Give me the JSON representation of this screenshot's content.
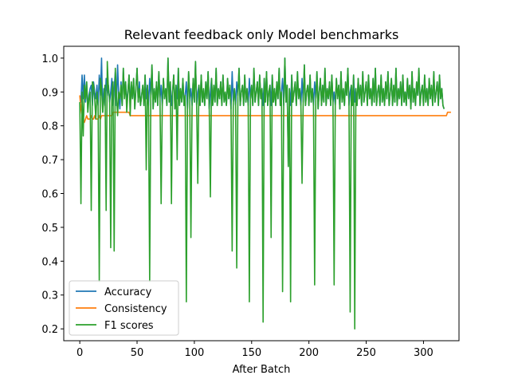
{
  "chart_data": {
    "type": "line",
    "title": "Relevant feedback only Model benchmarks",
    "xlabel": "After Batch",
    "ylabel": "",
    "xlim": [
      -14,
      331
    ],
    "ylim": [
      0.165,
      1.035
    ],
    "x_ticks": [
      0,
      50,
      100,
      150,
      200,
      250,
      300
    ],
    "y_ticks": [
      0.2,
      0.3,
      0.4,
      0.5,
      0.6,
      0.7,
      0.8,
      0.9,
      1.0
    ],
    "x_tick_labels": [
      "0",
      "50",
      "100",
      "150",
      "200",
      "250",
      "300"
    ],
    "y_tick_labels": [
      "0.2",
      "0.3",
      "0.4",
      "0.5",
      "0.6",
      "0.7",
      "0.8",
      "0.9",
      "1.0"
    ],
    "grid": false,
    "legend": "lower-left",
    "x_start": 0,
    "series": [
      {
        "name": "Accuracy",
        "color": "#1f77b4",
        "values": [
          0.89,
          0.87,
          0.95,
          0.88,
          0.95,
          0.87,
          0.93,
          0.85,
          0.89,
          0.91,
          0.92,
          0.86,
          0.93,
          0.9,
          0.88,
          0.92,
          0.86,
          0.95,
          0.89,
          1.0,
          0.84,
          0.91,
          0.86,
          0.94,
          0.89,
          0.92,
          0.87,
          0.9,
          0.94,
          0.86,
          0.91,
          0.96,
          0.86,
          0.98,
          0.89,
          0.85,
          0.93,
          0.86,
          0.97,
          0.89,
          0.93,
          0.87,
          0.9,
          0.95,
          0.86,
          0.92,
          0.88,
          0.94,
          0.85,
          0.91,
          0.97,
          0.87,
          0.93,
          0.86,
          0.89,
          0.92,
          0.86,
          0.95,
          0.88,
          0.92,
          0.86,
          0.94,
          0.89,
          0.98,
          0.85,
          0.91,
          0.87,
          0.93,
          0.86,
          0.96,
          0.88,
          0.92,
          0.86,
          0.94,
          0.88,
          0.91,
          0.86,
          1.0,
          0.87,
          0.93,
          0.86,
          0.9,
          0.95,
          0.85,
          0.92,
          0.88,
          0.97,
          0.86,
          0.91,
          0.87,
          0.94,
          0.86,
          0.89,
          0.93,
          0.85,
          0.96,
          0.88,
          0.91,
          0.86,
          0.94,
          0.87,
          0.99,
          0.86,
          0.9,
          0.92,
          0.86,
          0.95,
          0.87,
          0.91,
          0.86,
          0.93,
          0.88,
          0.96,
          0.85,
          0.9,
          0.94,
          0.86,
          0.92,
          0.87,
          0.97,
          0.86,
          0.91,
          0.88,
          0.93,
          0.86,
          0.95,
          0.87,
          0.9,
          0.86,
          0.94,
          0.88,
          0.92,
          0.85,
          0.96,
          0.87,
          0.91,
          0.86,
          0.93,
          0.89,
          0.97,
          0.86,
          0.9,
          0.92,
          0.86,
          0.95,
          0.87,
          0.91,
          0.86,
          0.94,
          0.88,
          0.92,
          0.86,
          0.97,
          0.87,
          0.9,
          0.93,
          0.86,
          0.95,
          0.88,
          0.91,
          0.86,
          0.94,
          0.87,
          0.96,
          0.86,
          0.9,
          0.92,
          0.86,
          0.95,
          0.87,
          0.91,
          0.86,
          0.93,
          0.88,
          0.97,
          0.86,
          0.9,
          0.94,
          0.86,
          1.0,
          0.87,
          0.92,
          0.68,
          0.91,
          0.86,
          0.95,
          0.87,
          0.9,
          0.93,
          0.86,
          0.96,
          0.88,
          0.91,
          0.86,
          0.94,
          0.87,
          0.98,
          0.86,
          0.9,
          0.92,
          0.86,
          0.95,
          0.87,
          0.91,
          0.86,
          0.93,
          0.88,
          0.96,
          0.85,
          0.9,
          0.94,
          0.86,
          0.92,
          0.87,
          0.97,
          0.86,
          0.91,
          0.88,
          0.93,
          0.86,
          0.95,
          0.87,
          0.9,
          0.86,
          0.94,
          0.88,
          0.92,
          0.85,
          0.96,
          0.87,
          0.91,
          0.86,
          0.93,
          0.89,
          0.97,
          0.86,
          0.9,
          0.92,
          0.86,
          0.95,
          0.87,
          0.91,
          0.86,
          0.94,
          0.88,
          0.92,
          0.86,
          0.96,
          0.87,
          0.9,
          0.93,
          0.86,
          0.95,
          0.88,
          0.91,
          0.86,
          0.94,
          0.87,
          0.97,
          0.86,
          0.9,
          0.92,
          0.86,
          0.95,
          0.87,
          0.91,
          0.86,
          0.93,
          0.88,
          0.96,
          0.86,
          0.9,
          0.94,
          0.86,
          0.92,
          0.87,
          0.97,
          0.86,
          0.91,
          0.88,
          0.93,
          0.86,
          0.95,
          0.87,
          0.9,
          0.86,
          0.94,
          0.88,
          0.92,
          0.85,
          0.96,
          0.87,
          0.91,
          0.86,
          0.93,
          0.89,
          0.97,
          0.86,
          0.9,
          0.92,
          0.86,
          0.95,
          0.87,
          0.91,
          0.86,
          0.94,
          0.88,
          0.92,
          0.86,
          0.96,
          0.87,
          0.9,
          0.93,
          0.86,
          0.95,
          0.88,
          0.91,
          0.86,
          0.85
        ]
      },
      {
        "name": "Consistency",
        "color": "#ff7f0e",
        "values": [
          0.89,
          0.85,
          0.83,
          0.82,
          0.81,
          0.82,
          0.83,
          0.82,
          0.82,
          0.82,
          0.83,
          0.82,
          0.82,
          0.83,
          0.82,
          0.82,
          0.82,
          0.83,
          0.82,
          0.83,
          0.83,
          0.83,
          0.83,
          0.83,
          0.83,
          0.83,
          0.83,
          0.83,
          0.83,
          0.84,
          0.84,
          0.84,
          0.84,
          0.84,
          0.84,
          0.84,
          0.84,
          0.84,
          0.84,
          0.84,
          0.84,
          0.84,
          0.84,
          0.84,
          0.83,
          0.83,
          0.83,
          0.83,
          0.83,
          0.83,
          0.83,
          0.83,
          0.83,
          0.83,
          0.83,
          0.83,
          0.83,
          0.83,
          0.83,
          0.83,
          0.83,
          0.83,
          0.83,
          0.83,
          0.83,
          0.83,
          0.83,
          0.83,
          0.83,
          0.83,
          0.83,
          0.83,
          0.83,
          0.83,
          0.83,
          0.83,
          0.83,
          0.83,
          0.83,
          0.83,
          0.83,
          0.83,
          0.83,
          0.83,
          0.83,
          0.83,
          0.83,
          0.83,
          0.83,
          0.83,
          0.83,
          0.83,
          0.83,
          0.83,
          0.83,
          0.83,
          0.83,
          0.83,
          0.83,
          0.83,
          0.83,
          0.83,
          0.83,
          0.83,
          0.83,
          0.83,
          0.83,
          0.83,
          0.83,
          0.83,
          0.83,
          0.83,
          0.83,
          0.83,
          0.83,
          0.83,
          0.83,
          0.83,
          0.83,
          0.83,
          0.83,
          0.83,
          0.83,
          0.83,
          0.83,
          0.83,
          0.83,
          0.83,
          0.83,
          0.83,
          0.83,
          0.83,
          0.83,
          0.83,
          0.83,
          0.83,
          0.83,
          0.83,
          0.83,
          0.83,
          0.83,
          0.83,
          0.83,
          0.83,
          0.83,
          0.83,
          0.83,
          0.83,
          0.83,
          0.83,
          0.83,
          0.83,
          0.83,
          0.83,
          0.83,
          0.83,
          0.83,
          0.83,
          0.83,
          0.83,
          0.83,
          0.83,
          0.83,
          0.83,
          0.83,
          0.83,
          0.83,
          0.83,
          0.83,
          0.83,
          0.83,
          0.83,
          0.83,
          0.83,
          0.83,
          0.83,
          0.83,
          0.83,
          0.83,
          0.83,
          0.83,
          0.83,
          0.83,
          0.83,
          0.83,
          0.83,
          0.83,
          0.83,
          0.83,
          0.83,
          0.83,
          0.83,
          0.83,
          0.83,
          0.83,
          0.83,
          0.83,
          0.83,
          0.83,
          0.83,
          0.83,
          0.83,
          0.83,
          0.83,
          0.83,
          0.83,
          0.83,
          0.83,
          0.83,
          0.83,
          0.83,
          0.83,
          0.83,
          0.83,
          0.83,
          0.83,
          0.83,
          0.83,
          0.83,
          0.83,
          0.83,
          0.83,
          0.83,
          0.83,
          0.83,
          0.83,
          0.83,
          0.83,
          0.83,
          0.83,
          0.83,
          0.83,
          0.83,
          0.83,
          0.83,
          0.83,
          0.83,
          0.83,
          0.83,
          0.83,
          0.83,
          0.83,
          0.83,
          0.83,
          0.83,
          0.83,
          0.83,
          0.83,
          0.83,
          0.83,
          0.83,
          0.83,
          0.83,
          0.83,
          0.83,
          0.83,
          0.83,
          0.83,
          0.83,
          0.83,
          0.83,
          0.83,
          0.83,
          0.83,
          0.83,
          0.83,
          0.83,
          0.83,
          0.83,
          0.83,
          0.83,
          0.83,
          0.83,
          0.83,
          0.83,
          0.83,
          0.83,
          0.83,
          0.83,
          0.83,
          0.83,
          0.83,
          0.83,
          0.83,
          0.83,
          0.83,
          0.83,
          0.83,
          0.83,
          0.83,
          0.83,
          0.83,
          0.83,
          0.83,
          0.83,
          0.83,
          0.83,
          0.83,
          0.83,
          0.83,
          0.83,
          0.83,
          0.83,
          0.83,
          0.83,
          0.83,
          0.83,
          0.83,
          0.83,
          0.83,
          0.83,
          0.83,
          0.83,
          0.83,
          0.83,
          0.83,
          0.83,
          0.83,
          0.83,
          0.83,
          0.83,
          0.84,
          0.84,
          0.84,
          0.84
        ]
      },
      {
        "name": "F1 scores",
        "color": "#2ca02c",
        "values": [
          0.87,
          0.57,
          0.9,
          0.77,
          0.92,
          0.88,
          0.93,
          0.84,
          0.88,
          0.9,
          0.55,
          0.93,
          0.92,
          0.88,
          0.82,
          0.9,
          0.86,
          0.34,
          0.94,
          0.91,
          0.84,
          0.88,
          0.92,
          0.55,
          0.99,
          0.91,
          0.88,
          0.44,
          0.9,
          0.93,
          0.43,
          0.97,
          0.89,
          0.83,
          0.9,
          0.88,
          0.92,
          0.86,
          0.97,
          0.88,
          0.93,
          0.84,
          0.9,
          0.95,
          0.83,
          0.93,
          0.88,
          0.94,
          0.85,
          0.91,
          0.97,
          0.87,
          0.91,
          0.86,
          0.89,
          0.92,
          0.86,
          0.95,
          0.67,
          0.92,
          0.86,
          0.34,
          0.89,
          0.98,
          0.85,
          0.91,
          0.87,
          0.93,
          0.86,
          0.96,
          0.88,
          0.57,
          0.86,
          0.94,
          0.88,
          0.91,
          0.86,
          1.0,
          0.87,
          0.93,
          0.57,
          0.9,
          0.95,
          0.85,
          0.92,
          0.7,
          0.97,
          0.86,
          0.91,
          0.87,
          0.94,
          0.86,
          0.89,
          0.28,
          0.85,
          0.96,
          0.88,
          0.47,
          0.86,
          0.94,
          0.87,
          0.99,
          0.86,
          0.63,
          0.92,
          0.86,
          0.95,
          0.87,
          0.91,
          0.86,
          0.93,
          0.88,
          0.96,
          0.85,
          0.59,
          0.94,
          0.86,
          0.92,
          0.87,
          0.97,
          0.86,
          0.91,
          0.88,
          0.93,
          0.86,
          0.95,
          0.87,
          0.9,
          0.86,
          0.94,
          0.88,
          0.92,
          0.85,
          0.43,
          0.87,
          0.91,
          0.86,
          0.38,
          0.89,
          0.97,
          0.86,
          0.9,
          0.92,
          0.86,
          0.95,
          0.87,
          0.91,
          0.86,
          0.28,
          0.88,
          0.92,
          0.86,
          0.97,
          0.87,
          0.9,
          0.93,
          0.86,
          0.95,
          0.88,
          0.91,
          0.22,
          0.94,
          0.87,
          0.96,
          0.86,
          0.9,
          0.92,
          0.47,
          0.95,
          0.87,
          0.91,
          0.86,
          0.93,
          0.88,
          0.97,
          0.86,
          0.9,
          0.31,
          0.86,
          1.0,
          0.87,
          0.92,
          0.68,
          0.91,
          0.28,
          0.95,
          0.87,
          0.9,
          0.93,
          0.86,
          0.96,
          0.88,
          0.91,
          0.86,
          0.63,
          0.87,
          0.98,
          0.86,
          0.9,
          0.92,
          0.86,
          0.95,
          0.87,
          0.91,
          0.86,
          0.33,
          0.88,
          0.96,
          0.85,
          0.9,
          0.94,
          0.86,
          0.92,
          0.87,
          0.97,
          0.86,
          0.91,
          0.88,
          0.93,
          0.86,
          0.95,
          0.87,
          0.33,
          0.86,
          0.94,
          0.88,
          0.92,
          0.85,
          0.96,
          0.87,
          0.91,
          0.86,
          0.93,
          0.89,
          0.97,
          0.86,
          0.25,
          0.92,
          0.86,
          0.95,
          0.2,
          0.91,
          0.86,
          0.94,
          0.88,
          0.92,
          0.86,
          0.96,
          0.87,
          0.9,
          0.93,
          0.86,
          0.95,
          0.88,
          0.91,
          0.86,
          0.94,
          0.87,
          0.97,
          0.86,
          0.9,
          0.92,
          0.86,
          0.95,
          0.87,
          0.91,
          0.86,
          0.93,
          0.88,
          0.96,
          0.86,
          0.9,
          0.94,
          0.86,
          0.92,
          0.87,
          0.97,
          0.86,
          0.91,
          0.88,
          0.93,
          0.86,
          0.95,
          0.87,
          0.9,
          0.86,
          0.94,
          0.88,
          0.92,
          0.85,
          0.96,
          0.87,
          0.91,
          0.86,
          0.93,
          0.89,
          0.97,
          0.86,
          0.9,
          0.92,
          0.86,
          0.95,
          0.87,
          0.91,
          0.86,
          0.94,
          0.88,
          0.92,
          0.86,
          0.96,
          0.87,
          0.9,
          0.93,
          0.86,
          0.95,
          0.88,
          0.91,
          0.86,
          0.85
        ]
      }
    ]
  }
}
